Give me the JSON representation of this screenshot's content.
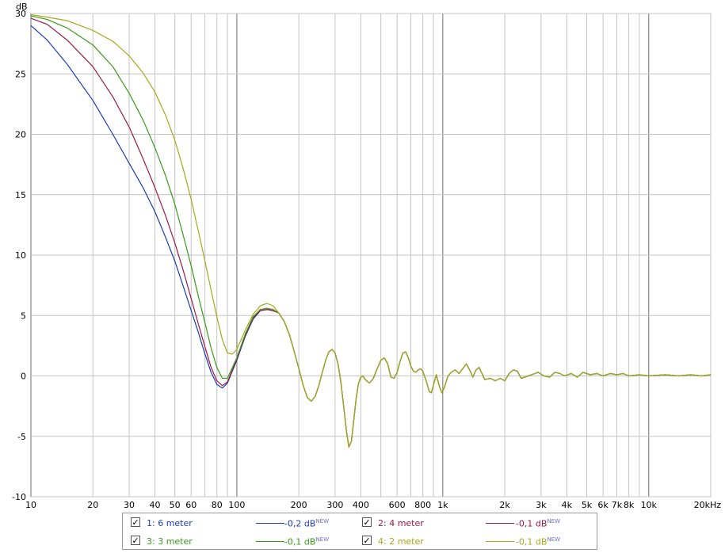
{
  "chart_data": {
    "type": "line",
    "ylabel": "dB",
    "xscale": "log",
    "xlim": [
      10,
      20000
    ],
    "ylim": [
      -10,
      30
    ],
    "grid": true,
    "xticks": [
      10,
      20,
      30,
      40,
      50,
      60,
      80,
      100,
      200,
      300,
      400,
      600,
      800,
      1000,
      2000,
      3000,
      4000,
      5000,
      6000,
      7000,
      8000,
      10000,
      20000
    ],
    "xtick_labels": [
      "10",
      "20",
      "30",
      "40",
      "50",
      "60",
      "80",
      "100",
      "200",
      "300",
      "400",
      "600",
      "800",
      "1k",
      "2k",
      "3k",
      "4k",
      "5k",
      "6k",
      "7k",
      "8k",
      "10k",
      "20kHz"
    ],
    "yticks": [
      -10,
      -5,
      0,
      5,
      10,
      15,
      20,
      25,
      30
    ],
    "ytick_labels": [
      "-10",
      "-5",
      "0",
      "5",
      "10",
      "15",
      "20",
      "25",
      "30"
    ],
    "series": [
      {
        "name": "1: 6 meter",
        "color": "#1a3cbb",
        "offset": "-0,2 dB",
        "points": [
          [
            10,
            29.0
          ],
          [
            12,
            27.8
          ],
          [
            15,
            25.8
          ],
          [
            20,
            22.8
          ],
          [
            25,
            20.0
          ],
          [
            30,
            17.6
          ],
          [
            35,
            15.6
          ],
          [
            40,
            13.6
          ],
          [
            45,
            11.5
          ],
          [
            50,
            9.5
          ],
          [
            55,
            7.4
          ],
          [
            60,
            5.4
          ],
          [
            65,
            3.6
          ],
          [
            70,
            1.8
          ],
          [
            75,
            0.3
          ],
          [
            80,
            -0.7
          ],
          [
            85,
            -1.0
          ],
          [
            90,
            -0.6
          ],
          [
            100,
            1.3
          ],
          [
            110,
            3.3
          ],
          [
            120,
            4.7
          ],
          [
            130,
            5.4
          ],
          [
            140,
            5.5
          ],
          [
            150,
            5.4
          ]
        ]
      },
      {
        "name": "2: 4 meter",
        "color": "#9b1a4a",
        "offset": "-0,1 dB",
        "points": [
          [
            10,
            29.6
          ],
          [
            12,
            29.1
          ],
          [
            15,
            27.8
          ],
          [
            20,
            25.6
          ],
          [
            25,
            23.1
          ],
          [
            30,
            20.6
          ],
          [
            35,
            18.0
          ],
          [
            40,
            15.6
          ],
          [
            45,
            13.3
          ],
          [
            50,
            11.0
          ],
          [
            55,
            8.7
          ],
          [
            60,
            6.4
          ],
          [
            65,
            4.3
          ],
          [
            70,
            2.4
          ],
          [
            75,
            0.7
          ],
          [
            80,
            -0.4
          ],
          [
            85,
            -0.8
          ],
          [
            90,
            -0.5
          ],
          [
            100,
            1.4
          ],
          [
            110,
            3.4
          ],
          [
            120,
            4.8
          ],
          [
            130,
            5.4
          ],
          [
            140,
            5.5
          ],
          [
            150,
            5.4
          ]
        ]
      },
      {
        "name": "3: 3 meter",
        "color": "#3a9a1a",
        "offset": "-0,1 dB",
        "points": [
          [
            10,
            29.8
          ],
          [
            12,
            29.5
          ],
          [
            15,
            28.8
          ],
          [
            20,
            27.4
          ],
          [
            25,
            25.6
          ],
          [
            30,
            23.4
          ],
          [
            35,
            21.2
          ],
          [
            40,
            18.9
          ],
          [
            45,
            16.6
          ],
          [
            50,
            14.2
          ],
          [
            55,
            11.6
          ],
          [
            60,
            9.1
          ],
          [
            65,
            6.6
          ],
          [
            70,
            4.4
          ],
          [
            75,
            2.3
          ],
          [
            80,
            0.7
          ],
          [
            85,
            -0.2
          ],
          [
            90,
            -0.2
          ],
          [
            100,
            1.5
          ],
          [
            110,
            3.5
          ],
          [
            120,
            4.9
          ],
          [
            130,
            5.5
          ],
          [
            140,
            5.6
          ],
          [
            150,
            5.5
          ]
        ]
      },
      {
        "name": "4: 2 meter",
        "color": "#a8a81a",
        "offset": "-0,1 dB",
        "points": [
          [
            10,
            29.9
          ],
          [
            12,
            29.7
          ],
          [
            15,
            29.4
          ],
          [
            20,
            28.6
          ],
          [
            25,
            27.7
          ],
          [
            30,
            26.5
          ],
          [
            35,
            25.1
          ],
          [
            40,
            23.5
          ],
          [
            45,
            21.6
          ],
          [
            50,
            19.5
          ],
          [
            55,
            17.1
          ],
          [
            60,
            14.6
          ],
          [
            65,
            12.0
          ],
          [
            70,
            9.5
          ],
          [
            75,
            7.1
          ],
          [
            80,
            4.9
          ],
          [
            85,
            3.0
          ],
          [
            90,
            1.9
          ],
          [
            95,
            1.8
          ],
          [
            100,
            2.2
          ],
          [
            110,
            3.8
          ],
          [
            120,
            5.1
          ],
          [
            130,
            5.8
          ],
          [
            140,
            6.0
          ],
          [
            150,
            5.8
          ]
        ]
      }
    ],
    "shared_tail": [
      [
        160,
        5.2
      ],
      [
        170,
        4.5
      ],
      [
        180,
        3.4
      ],
      [
        190,
        2.0
      ],
      [
        200,
        0.6
      ],
      [
        210,
        -0.8
      ],
      [
        220,
        -1.8
      ],
      [
        230,
        -2.1
      ],
      [
        240,
        -1.7
      ],
      [
        250,
        -0.8
      ],
      [
        260,
        0.3
      ],
      [
        270,
        1.3
      ],
      [
        280,
        2.0
      ],
      [
        290,
        2.2
      ],
      [
        300,
        1.9
      ],
      [
        310,
        1.0
      ],
      [
        320,
        -0.5
      ],
      [
        330,
        -2.5
      ],
      [
        340,
        -4.5
      ],
      [
        350,
        -5.9
      ],
      [
        360,
        -5.4
      ],
      [
        370,
        -3.6
      ],
      [
        380,
        -1.8
      ],
      [
        390,
        -0.6
      ],
      [
        400,
        -0.1
      ],
      [
        410,
        0.0
      ],
      [
        420,
        -0.3
      ],
      [
        440,
        -0.6
      ],
      [
        460,
        -0.2
      ],
      [
        480,
        0.6
      ],
      [
        500,
        1.3
      ],
      [
        520,
        1.5
      ],
      [
        540,
        1.0
      ],
      [
        560,
        -0.1
      ],
      [
        580,
        -0.2
      ],
      [
        600,
        0.3
      ],
      [
        620,
        1.2
      ],
      [
        640,
        1.9
      ],
      [
        660,
        2.0
      ],
      [
        680,
        1.5
      ],
      [
        700,
        0.8
      ],
      [
        720,
        0.4
      ],
      [
        740,
        0.3
      ],
      [
        760,
        0.5
      ],
      [
        780,
        0.6
      ],
      [
        800,
        0.4
      ],
      [
        830,
        -0.4
      ],
      [
        860,
        -1.3
      ],
      [
        880,
        -1.4
      ],
      [
        900,
        -0.8
      ],
      [
        930,
        0.1
      ],
      [
        960,
        -0.8
      ],
      [
        990,
        -1.4
      ],
      [
        1020,
        -0.9
      ],
      [
        1060,
        0.0
      ],
      [
        1100,
        0.3
      ],
      [
        1150,
        0.5
      ],
      [
        1200,
        0.2
      ],
      [
        1250,
        0.6
      ],
      [
        1300,
        1.0
      ],
      [
        1350,
        0.5
      ],
      [
        1400,
        -0.1
      ],
      [
        1450,
        0.5
      ],
      [
        1500,
        0.7
      ],
      [
        1550,
        0.2
      ],
      [
        1600,
        -0.3
      ],
      [
        1700,
        -0.2
      ],
      [
        1800,
        -0.4
      ],
      [
        1900,
        -0.2
      ],
      [
        2000,
        -0.4
      ],
      [
        2100,
        0.2
      ],
      [
        2200,
        0.5
      ],
      [
        2300,
        0.4
      ],
      [
        2400,
        -0.2
      ],
      [
        2500,
        -0.1
      ],
      [
        2700,
        0.1
      ],
      [
        2900,
        0.3
      ],
      [
        3100,
        0.0
      ],
      [
        3300,
        -0.1
      ],
      [
        3500,
        0.3
      ],
      [
        3700,
        0.2
      ],
      [
        3900,
        0.0
      ],
      [
        4200,
        0.2
      ],
      [
        4500,
        -0.1
      ],
      [
        4800,
        0.3
      ],
      [
        5200,
        0.1
      ],
      [
        5600,
        0.2
      ],
      [
        6000,
        0.0
      ],
      [
        6500,
        0.2
      ],
      [
        7000,
        0.1
      ],
      [
        7500,
        0.2
      ],
      [
        8000,
        0.0
      ],
      [
        9000,
        0.1
      ],
      [
        10000,
        0.0
      ],
      [
        12000,
        0.1
      ],
      [
        14000,
        0.0
      ],
      [
        16000,
        0.1
      ],
      [
        18000,
        0.0
      ],
      [
        20000,
        0.1
      ]
    ]
  },
  "legend": {
    "items": [
      {
        "label": "1: 6 meter",
        "value": "-0,2 dB",
        "sup": "NEW",
        "checked": "✓"
      },
      {
        "label": "2: 4 meter",
        "value": "-0,1 dB",
        "sup": "NEW",
        "checked": "✓"
      },
      {
        "label": "3: 3 meter",
        "value": "-0,1 dB",
        "sup": "NEW",
        "checked": "✓"
      },
      {
        "label": "4: 2 meter",
        "value": "-0,1 dB",
        "sup": "NEW",
        "checked": "✓"
      }
    ]
  }
}
